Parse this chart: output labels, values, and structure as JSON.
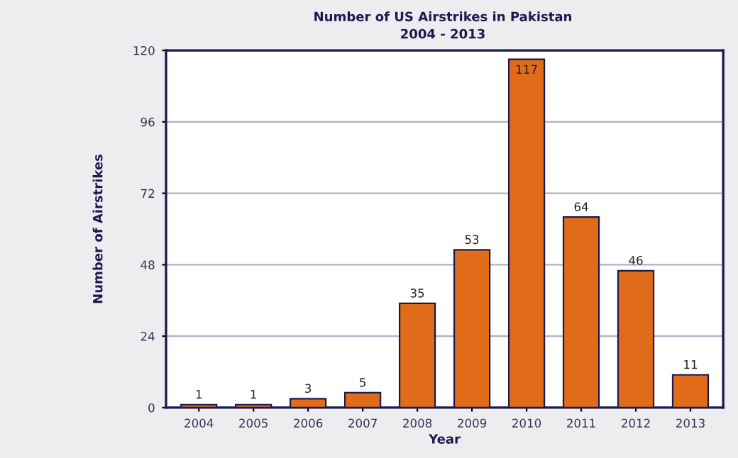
{
  "chart_data": {
    "type": "bar",
    "title": "Number of US Airstrikes in Pakistan\n2004 - 2013",
    "xlabel": "Year",
    "ylabel": "Number of Airstrikes",
    "categories": [
      "2004",
      "2005",
      "2006",
      "2007",
      "2008",
      "2009",
      "2010",
      "2011",
      "2012",
      "2013"
    ],
    "values": [
      1,
      1,
      3,
      5,
      35,
      53,
      117,
      64,
      46,
      11
    ],
    "color": "#e06c1a",
    "ylim": [
      0,
      120
    ],
    "yticks": [
      0,
      24,
      48,
      72,
      96,
      120
    ],
    "grid": "y",
    "data_labels": true
  }
}
